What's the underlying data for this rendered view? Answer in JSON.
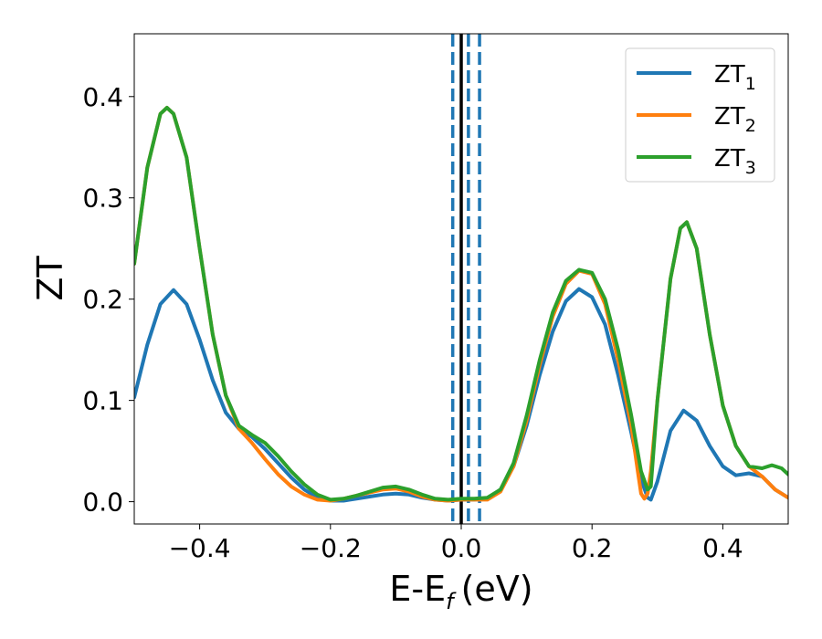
{
  "chart_data": {
    "type": "line",
    "xlabel": "E-E",
    "xlabel_sub": "f",
    "xlabel_unit": "(eV)",
    "ylabel": "ZT",
    "xlim": [
      -0.5,
      0.5
    ],
    "ylim": [
      -0.022,
      0.462
    ],
    "xticks": [
      -0.4,
      -0.2,
      0.0,
      0.2,
      0.4
    ],
    "xtick_labels": [
      "−0.4",
      "−0.2",
      "0.0",
      "0.2",
      "0.4"
    ],
    "yticks": [
      0.0,
      0.1,
      0.2,
      0.3,
      0.4
    ],
    "ytick_labels": [
      "0.0",
      "0.1",
      "0.2",
      "0.3",
      "0.4"
    ],
    "grid": false,
    "legend_position": "top-right",
    "vlines": [
      {
        "x": 0.0,
        "style": "solid",
        "color": "#000000"
      },
      {
        "x": -0.013,
        "style": "dashed",
        "color": "#1f77b4"
      },
      {
        "x": 0.011,
        "style": "dashed",
        "color": "#1f77b4"
      },
      {
        "x": 0.028,
        "style": "dashed",
        "color": "#1f77b4"
      }
    ],
    "series": [
      {
        "name": "ZT",
        "name_sub": "1",
        "color": "#1f77b4",
        "points": [
          [
            -0.5,
            0.103
          ],
          [
            -0.48,
            0.155
          ],
          [
            -0.46,
            0.195
          ],
          [
            -0.44,
            0.209
          ],
          [
            -0.42,
            0.195
          ],
          [
            -0.4,
            0.16
          ],
          [
            -0.38,
            0.12
          ],
          [
            -0.36,
            0.088
          ],
          [
            -0.34,
            0.072
          ],
          [
            -0.32,
            0.064
          ],
          [
            -0.3,
            0.052
          ],
          [
            -0.28,
            0.038
          ],
          [
            -0.26,
            0.024
          ],
          [
            -0.24,
            0.012
          ],
          [
            -0.22,
            0.004
          ],
          [
            -0.2,
            0.001
          ],
          [
            -0.18,
            0.001
          ],
          [
            -0.16,
            0.003
          ],
          [
            -0.14,
            0.005
          ],
          [
            -0.12,
            0.007
          ],
          [
            -0.1,
            0.008
          ],
          [
            -0.08,
            0.007
          ],
          [
            -0.06,
            0.004
          ],
          [
            -0.04,
            0.002
          ],
          [
            -0.02,
            0.001
          ],
          [
            0.0,
            0.002
          ],
          [
            0.02,
            0.002
          ],
          [
            0.04,
            0.003
          ],
          [
            0.06,
            0.012
          ],
          [
            0.08,
            0.035
          ],
          [
            0.1,
            0.075
          ],
          [
            0.12,
            0.125
          ],
          [
            0.14,
            0.168
          ],
          [
            0.16,
            0.198
          ],
          [
            0.18,
            0.21
          ],
          [
            0.2,
            0.202
          ],
          [
            0.22,
            0.175
          ],
          [
            0.24,
            0.125
          ],
          [
            0.26,
            0.068
          ],
          [
            0.275,
            0.022
          ],
          [
            0.285,
            0.004
          ],
          [
            0.29,
            0.002
          ],
          [
            0.3,
            0.02
          ],
          [
            0.32,
            0.07
          ],
          [
            0.34,
            0.09
          ],
          [
            0.36,
            0.08
          ],
          [
            0.38,
            0.055
          ],
          [
            0.4,
            0.035
          ],
          [
            0.42,
            0.026
          ],
          [
            0.44,
            0.028
          ],
          [
            0.46,
            0.025
          ],
          [
            0.48,
            0.012
          ],
          [
            0.5,
            0.004
          ]
        ]
      },
      {
        "name": "ZT",
        "name_sub": "2",
        "color": "#ff7f0e",
        "points": [
          [
            -0.5,
            0.235
          ],
          [
            -0.48,
            0.33
          ],
          [
            -0.46,
            0.383
          ],
          [
            -0.45,
            0.389
          ],
          [
            -0.44,
            0.383
          ],
          [
            -0.42,
            0.34
          ],
          [
            -0.4,
            0.25
          ],
          [
            -0.38,
            0.165
          ],
          [
            -0.36,
            0.105
          ],
          [
            -0.34,
            0.072
          ],
          [
            -0.32,
            0.058
          ],
          [
            -0.3,
            0.042
          ],
          [
            -0.28,
            0.027
          ],
          [
            -0.26,
            0.015
          ],
          [
            -0.24,
            0.007
          ],
          [
            -0.22,
            0.002
          ],
          [
            -0.2,
            0.001
          ],
          [
            -0.18,
            0.003
          ],
          [
            -0.16,
            0.006
          ],
          [
            -0.14,
            0.009
          ],
          [
            -0.12,
            0.012
          ],
          [
            -0.1,
            0.013
          ],
          [
            -0.08,
            0.01
          ],
          [
            -0.06,
            0.005
          ],
          [
            -0.04,
            0.002
          ],
          [
            -0.02,
            0.001
          ],
          [
            0.0,
            0.002
          ],
          [
            0.02,
            0.002
          ],
          [
            0.04,
            0.002
          ],
          [
            0.06,
            0.01
          ],
          [
            0.08,
            0.035
          ],
          [
            0.1,
            0.08
          ],
          [
            0.12,
            0.135
          ],
          [
            0.14,
            0.183
          ],
          [
            0.16,
            0.215
          ],
          [
            0.18,
            0.228
          ],
          [
            0.2,
            0.225
          ],
          [
            0.22,
            0.195
          ],
          [
            0.24,
            0.14
          ],
          [
            0.26,
            0.075
          ],
          [
            0.27,
            0.03
          ],
          [
            0.275,
            0.008
          ],
          [
            0.28,
            0.003
          ],
          [
            0.285,
            0.008
          ],
          [
            0.29,
            0.03
          ],
          [
            0.3,
            0.1
          ],
          [
            0.32,
            0.22
          ],
          [
            0.335,
            0.27
          ],
          [
            0.345,
            0.276
          ],
          [
            0.36,
            0.25
          ],
          [
            0.38,
            0.165
          ],
          [
            0.4,
            0.095
          ],
          [
            0.42,
            0.055
          ],
          [
            0.44,
            0.035
          ],
          [
            0.46,
            0.025
          ],
          [
            0.48,
            0.012
          ],
          [
            0.5,
            0.004
          ]
        ]
      },
      {
        "name": "ZT",
        "name_sub": "3",
        "color": "#2ca02c",
        "points": [
          [
            -0.5,
            0.235
          ],
          [
            -0.48,
            0.33
          ],
          [
            -0.46,
            0.383
          ],
          [
            -0.45,
            0.389
          ],
          [
            -0.44,
            0.383
          ],
          [
            -0.42,
            0.34
          ],
          [
            -0.4,
            0.25
          ],
          [
            -0.38,
            0.165
          ],
          [
            -0.36,
            0.105
          ],
          [
            -0.34,
            0.075
          ],
          [
            -0.32,
            0.066
          ],
          [
            -0.3,
            0.058
          ],
          [
            -0.28,
            0.045
          ],
          [
            -0.26,
            0.03
          ],
          [
            -0.24,
            0.017
          ],
          [
            -0.22,
            0.007
          ],
          [
            -0.2,
            0.002
          ],
          [
            -0.18,
            0.003
          ],
          [
            -0.16,
            0.006
          ],
          [
            -0.14,
            0.01
          ],
          [
            -0.12,
            0.014
          ],
          [
            -0.1,
            0.015
          ],
          [
            -0.08,
            0.012
          ],
          [
            -0.06,
            0.007
          ],
          [
            -0.04,
            0.003
          ],
          [
            -0.02,
            0.002
          ],
          [
            0.0,
            0.003
          ],
          [
            0.02,
            0.003
          ],
          [
            0.04,
            0.004
          ],
          [
            0.06,
            0.012
          ],
          [
            0.08,
            0.038
          ],
          [
            0.1,
            0.085
          ],
          [
            0.12,
            0.14
          ],
          [
            0.14,
            0.187
          ],
          [
            0.16,
            0.218
          ],
          [
            0.18,
            0.229
          ],
          [
            0.2,
            0.226
          ],
          [
            0.22,
            0.2
          ],
          [
            0.24,
            0.15
          ],
          [
            0.26,
            0.085
          ],
          [
            0.275,
            0.03
          ],
          [
            0.285,
            0.012
          ],
          [
            0.29,
            0.015
          ],
          [
            0.3,
            0.1
          ],
          [
            0.32,
            0.22
          ],
          [
            0.335,
            0.27
          ],
          [
            0.345,
            0.276
          ],
          [
            0.36,
            0.25
          ],
          [
            0.38,
            0.165
          ],
          [
            0.4,
            0.095
          ],
          [
            0.42,
            0.055
          ],
          [
            0.44,
            0.035
          ],
          [
            0.46,
            0.033
          ],
          [
            0.475,
            0.036
          ],
          [
            0.49,
            0.033
          ],
          [
            0.5,
            0.027
          ]
        ]
      }
    ]
  }
}
